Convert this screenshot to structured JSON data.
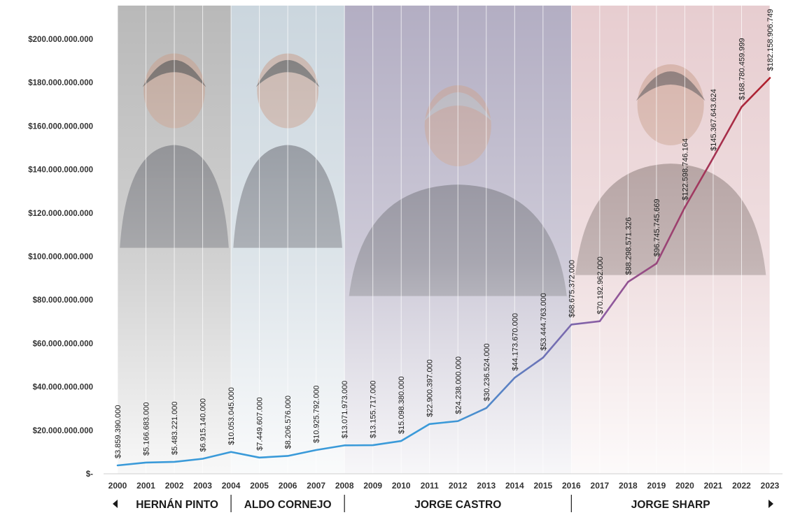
{
  "chart_data": {
    "type": "line",
    "title": "",
    "xlabel": "",
    "ylabel": "",
    "x": [
      "2000",
      "2001",
      "2002",
      "2003",
      "2004",
      "2005",
      "2006",
      "2007",
      "2008",
      "2009",
      "2010",
      "2011",
      "2012",
      "2013",
      "2014",
      "2015",
      "2016",
      "2017",
      "2018",
      "2019",
      "2020",
      "2021",
      "2022",
      "2023"
    ],
    "values": [
      3859390000,
      5166683000,
      5483221000,
      6915140000,
      10053045000,
      7449607000,
      8206576000,
      10925792000,
      13071973000,
      13155717000,
      15098380000,
      22900397000,
      24238000000,
      30236524000,
      44173670000,
      53444763000,
      68675372000,
      70192962000,
      88298571326,
      96745745669,
      122598746164,
      145367643624,
      168780459999,
      182158906749
    ],
    "value_labels": [
      "$3.859.390.000",
      "$5.166.683.000",
      "$5.483.221.000",
      "$6.915.140.000",
      "$10.053.045.000",
      "$7.449.607.000",
      "$8.206.576.000",
      "$10.925.792.000",
      "$13.071.973.000",
      "$13.155.717.000",
      "$15.098.380.000",
      "$22.900.397.000",
      "$24.238.000.000",
      "$30.236.524.000",
      "$44.173.670.000",
      "$53.444.763.000",
      "$68.675.372.000",
      "$70.192.962.000",
      "$88.298.571.326",
      "$96.745.745.669",
      "$122.598.746.164",
      "$145.367.643.624",
      "$168.780.459.999",
      "$182.158.906.749"
    ],
    "ylim": [
      0,
      200000000000
    ],
    "yticks": [
      0,
      20000000000,
      40000000000,
      60000000000,
      80000000000,
      100000000000,
      120000000000,
      140000000000,
      160000000000,
      180000000000,
      200000000000
    ],
    "ytick_labels": [
      "$-",
      "$20.000.000.000",
      "$40.000.000.000",
      "$60.000.000.000",
      "$80.000.000.000",
      "$100.000.000.000",
      "$120.000.000.000",
      "$140.000.000.000",
      "$160.000.000.000",
      "$180.000.000.000",
      "$200.000.000.000"
    ],
    "grid": "vertical",
    "periods": [
      {
        "name": "HERNÁN PINTO",
        "start": "2000",
        "end": "2004",
        "color": "#b9b9b9"
      },
      {
        "name": "ALDO CORNEJO",
        "start": "2004",
        "end": "2008",
        "color": "#cbd6de"
      },
      {
        "name": "JORGE CASTRO",
        "start": "2008",
        "end": "2016",
        "color": "#b3aec3"
      },
      {
        "name": "JORGE SHARP",
        "start": "2016",
        "end": "2023",
        "color": "#e7cdd0"
      }
    ],
    "line_gradient": [
      "#3a9ad9",
      "#8e5aa0",
      "#b01e2a"
    ]
  }
}
